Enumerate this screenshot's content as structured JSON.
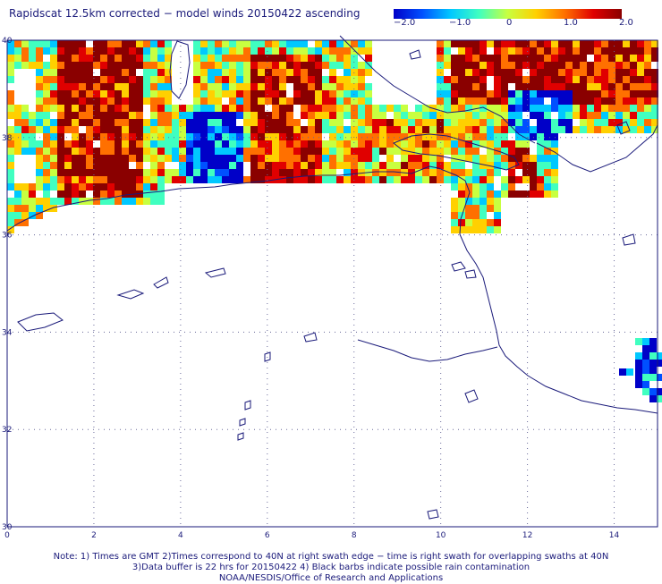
{
  "title": "Rapidscat 12.5km corrected − model winds 20150422 ascending",
  "colorbar": {
    "ticks": [
      "−2.0",
      "−1.0",
      "0",
      "1.0",
      "2.0"
    ],
    "stops": [
      "#0000c8",
      "#0050ff",
      "#00c8ff",
      "#40ffc0",
      "#c8ff40",
      "#ffd000",
      "#ff7000",
      "#e00000",
      "#8a0000"
    ]
  },
  "map": {
    "lon_ticks": [
      "0",
      "2",
      "4",
      "6",
      "8",
      "10",
      "12",
      "14"
    ],
    "lat_ticks": [
      "40",
      "38",
      "36",
      "34",
      "32",
      "30"
    ],
    "lon_range": [
      0,
      15
    ],
    "lat_range": [
      30,
      40
    ],
    "coast_color": "#1a1a7a",
    "grid": "dotted"
  },
  "notes": {
    "line1": "Note: 1) Times are GMT 2)Times correspond to 40N at right swath edge − time is right swath for overlapping swaths at 40N",
    "line2": "3)Data buffer is 22 hrs for 20150422 4) Black barbs indicate possible rain contamination",
    "line3": "NOAA/NESDIS/Office of Research and Applications"
  }
}
